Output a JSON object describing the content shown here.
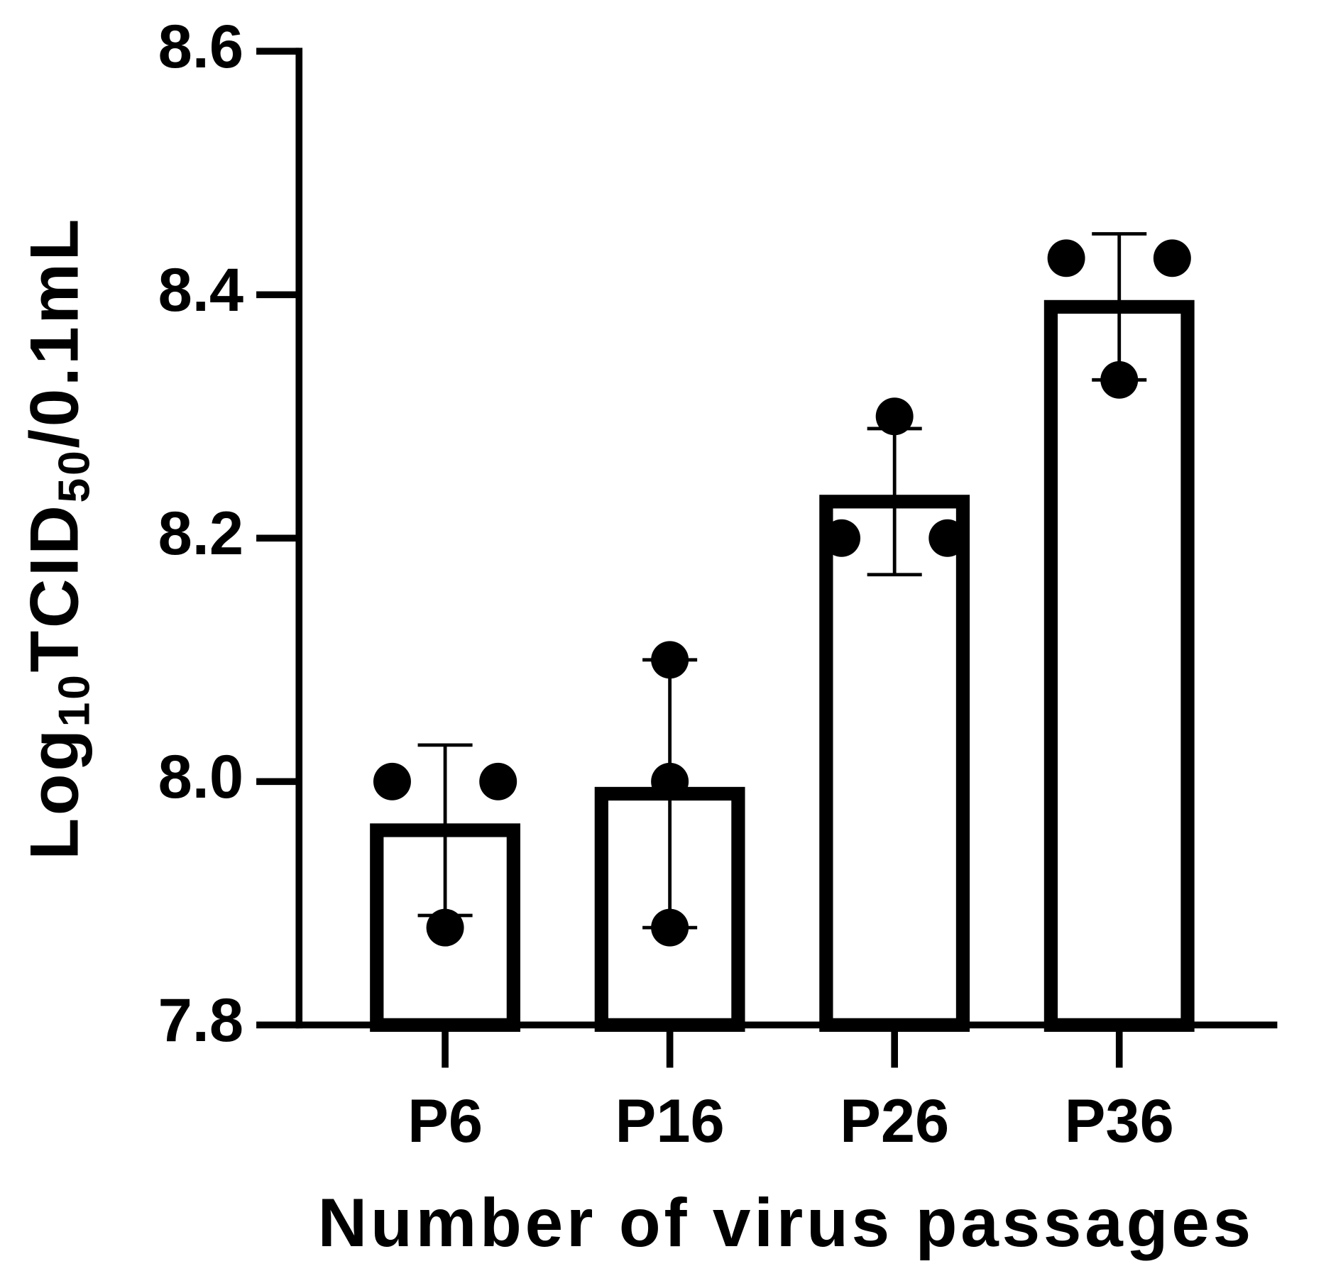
{
  "chart_data": {
    "type": "bar",
    "x_label": "Number of virus passages",
    "y_label": [
      "Log",
      "10",
      "TCID",
      "50",
      "/0.1mL"
    ],
    "categories": [
      "P6",
      "P16",
      "P26",
      "P36"
    ],
    "values": [
      7.96,
      7.99,
      8.23,
      8.39
    ],
    "errors": [
      0.07,
      0.11,
      0.06,
      0.06
    ],
    "points": [
      [
        8.0,
        8.0,
        7.88
      ],
      [
        8.1,
        8.0,
        7.88
      ],
      [
        8.3,
        8.2,
        8.2
      ],
      [
        8.43,
        8.43,
        8.33
      ]
    ],
    "color": "#000000",
    "ylim": [
      7.8,
      8.6
    ],
    "yticks": [
      7.8,
      {
        "value": 8,
        "label": "8.0"
      },
      8.2,
      8.4,
      8.6
    ]
  }
}
